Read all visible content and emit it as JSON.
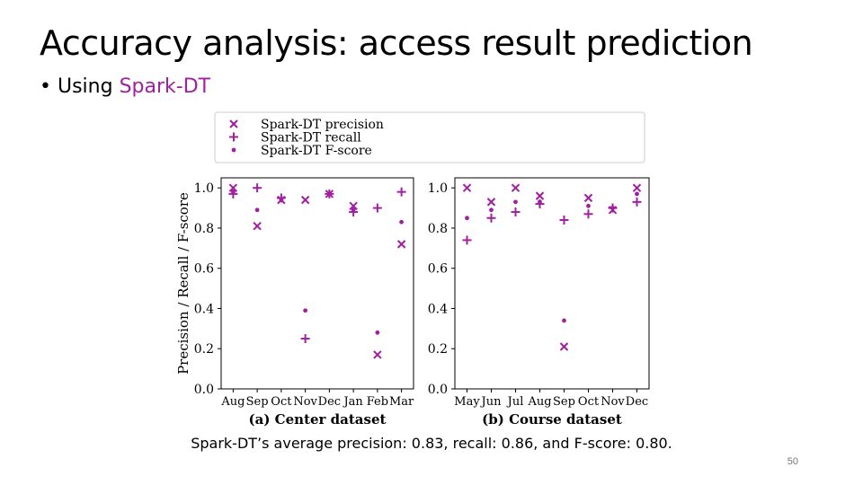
{
  "slide": {
    "title": "Accuracy analysis: access result prediction",
    "bullet_prefix": "Using ",
    "bullet_highlight": "Spark-DT",
    "caption": "Spark-DT’s average precision: 0.83, recall: 0.86, and F-score: 0.80.",
    "page_number": "50",
    "accent_color": "#a020a0"
  },
  "chart_data": [
    {
      "type": "scatter",
      "title": "(a) Center dataset",
      "ylabel": "Precision / Recall / F-score",
      "ylim": [
        0,
        1.05
      ],
      "yticks": [
        "0.0",
        "0.2",
        "0.4",
        "0.6",
        "0.8",
        "1.0"
      ],
      "categories": [
        "Aug",
        "Sep",
        "Oct",
        "Nov",
        "Dec",
        "Jan",
        "Feb",
        "Mar"
      ],
      "grid": false,
      "legend_position": "top",
      "series": [
        {
          "name": "Spark-DT precision",
          "marker": "x",
          "values": [
            1.0,
            0.81,
            0.94,
            0.94,
            0.97,
            0.91,
            0.17,
            0.72
          ]
        },
        {
          "name": "Spark-DT recall",
          "marker": "+",
          "values": [
            0.97,
            1.0,
            0.95,
            0.25,
            0.97,
            0.88,
            0.9,
            0.98
          ]
        },
        {
          "name": "Spark-DT F-score",
          "marker": "dot",
          "values": [
            0.98,
            0.89,
            0.94,
            0.39,
            0.97,
            0.89,
            0.28,
            0.83
          ]
        }
      ]
    },
    {
      "type": "scatter",
      "title": "(b) Course dataset",
      "ylabel": "",
      "ylim": [
        0,
        1.05
      ],
      "yticks": [
        "0.0",
        "0.2",
        "0.4",
        "0.6",
        "0.8",
        "1.0"
      ],
      "categories": [
        "May",
        "Jun",
        "Jul",
        "Aug",
        "Sep",
        "Oct",
        "Nov",
        "Dec"
      ],
      "grid": false,
      "series": [
        {
          "name": "Spark-DT precision",
          "marker": "x",
          "values": [
            1.0,
            0.93,
            1.0,
            0.96,
            0.21,
            0.95,
            0.89,
            1.0
          ]
        },
        {
          "name": "Spark-DT recall",
          "marker": "+",
          "values": [
            0.74,
            0.85,
            0.88,
            0.92,
            0.84,
            0.87,
            0.9,
            0.93
          ]
        },
        {
          "name": "Spark-DT F-score",
          "marker": "dot",
          "values": [
            0.85,
            0.89,
            0.93,
            0.93,
            0.34,
            0.91,
            0.9,
            0.97
          ]
        }
      ]
    }
  ]
}
